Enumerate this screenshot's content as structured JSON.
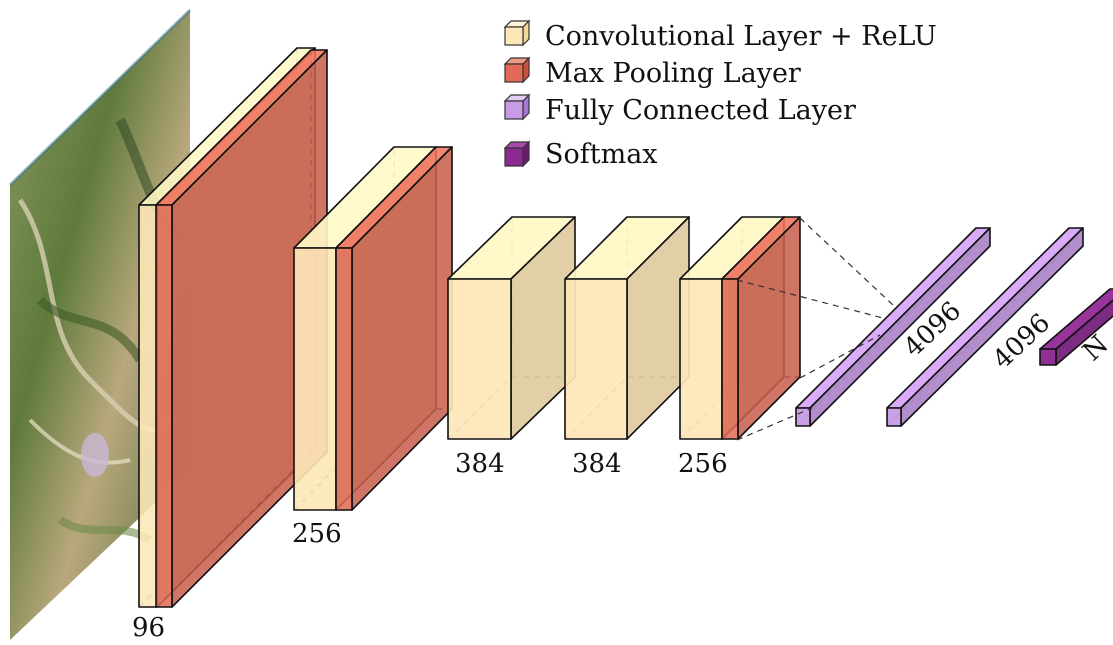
{
  "legend": [
    {
      "label": "Convolutional Layer + ReLU",
      "type": "conv"
    },
    {
      "label": "Max Pooling Layer",
      "type": "pool"
    },
    {
      "label": "Fully Connected Layer",
      "type": "fc"
    },
    {
      "label": "Softmax",
      "type": "softmax"
    }
  ],
  "colors": {
    "conv": "#fde7b7",
    "pool": "#e06a55",
    "fc": "#c79be6",
    "softmax": "#8b2a8f",
    "input_image": "satellite-terrain-image"
  },
  "layers": [
    {
      "type": "conv",
      "label": "96"
    },
    {
      "type": "pool",
      "label": ""
    },
    {
      "type": "conv",
      "label": "256"
    },
    {
      "type": "pool",
      "label": ""
    },
    {
      "type": "conv",
      "label": "384"
    },
    {
      "type": "conv",
      "label": "384"
    },
    {
      "type": "conv",
      "label": "256"
    },
    {
      "type": "pool",
      "label": ""
    },
    {
      "type": "fc",
      "label": "4096"
    },
    {
      "type": "fc",
      "label": "4096"
    },
    {
      "type": "softmax",
      "label": "N"
    }
  ]
}
